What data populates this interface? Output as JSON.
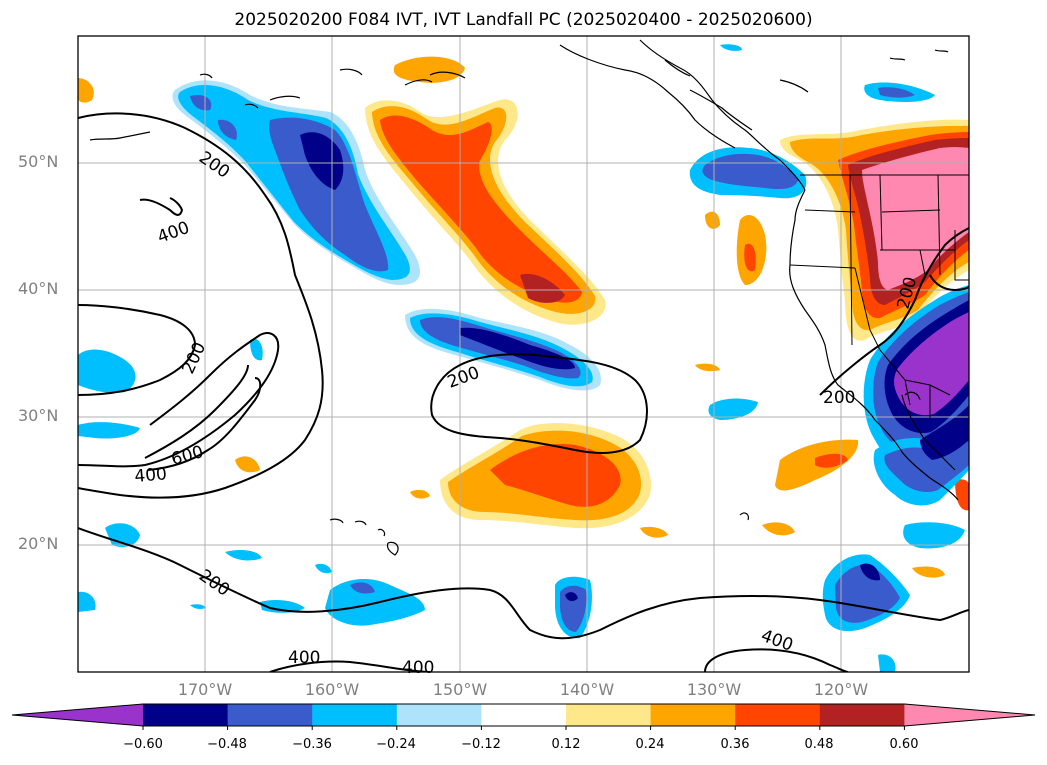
{
  "title": "2025020200 F084 IVT, IVT Landfall PC (2025020400 - 2025020600)",
  "latitude_labels": [
    "50°N",
    "40°N",
    "30°N",
    "20°N"
  ],
  "longitude_labels": [
    "170°W",
    "160°W",
    "150°W",
    "140°W",
    "130°W",
    "120°W"
  ],
  "contour_labels": [
    "200",
    "400",
    "200",
    "600",
    "400",
    "200",
    "200",
    "400",
    "400",
    "200",
    "400",
    "200"
  ],
  "colorbar": {
    "ticks": [
      "−0.60",
      "−0.48",
      "−0.36",
      "−0.24",
      "−0.12",
      "0.12",
      "0.24",
      "0.36",
      "0.48",
      "0.60"
    ],
    "colors": [
      "#9933cc",
      "#000088",
      "#3a5bcc",
      "#00bfff",
      "#ade3fb",
      "#ffffff",
      "#ffe88a",
      "#ffa500",
      "#ff4500",
      "#b22222",
      "#ff88b0"
    ]
  }
}
